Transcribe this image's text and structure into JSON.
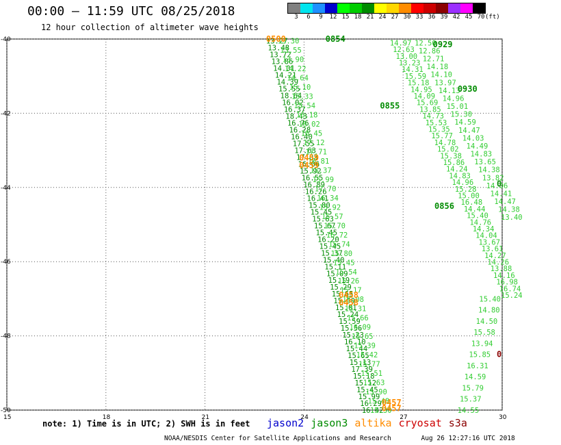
{
  "header": {
    "title": "00:00 – 11:59 UTC 08/25/2018",
    "subtitle": "12 hour collection of altimeter wave heights"
  },
  "colorbar": {
    "colors": [
      "#808080",
      "#00e5ee",
      "#1e90ff",
      "#0000cd",
      "#00ff00",
      "#00cd00",
      "#008b00",
      "#ffff00",
      "#ffd700",
      "#ff8c00",
      "#ff0000",
      "#cd0000",
      "#8b0000",
      "#9b30ff",
      "#ff00ff",
      "#000000"
    ],
    "labels": [
      "3",
      "6",
      "9",
      "12",
      "15",
      "18",
      "21",
      "24",
      "27",
      "30",
      "33",
      "36",
      "39",
      "42",
      "45",
      "70"
    ],
    "unit": "(ft)"
  },
  "axes": {
    "lat_labels": [
      "-40",
      "-42",
      "-44",
      "-46",
      "-48",
      "-50"
    ],
    "lat_values": [
      -40,
      -42,
      -44,
      -46,
      -48,
      -50
    ],
    "lon_labels": [
      "15",
      "18",
      "21",
      "24",
      "27",
      "30"
    ],
    "lon_values": [
      15,
      18,
      21,
      24,
      27,
      30
    ]
  },
  "colors": {
    "jason2": "#0000cd",
    "jason3": "#008b00",
    "jason3_light": "#32cd32",
    "altika": "#ff8c00",
    "cryosat": "#cd0000",
    "s3a": "#8b0000"
  },
  "tracks": {
    "jason3_main": {
      "lon_start": 22.85,
      "lat_start": -40.05,
      "lon_end": 25.75,
      "lat_end": -50.0,
      "values": [
        "13.27",
        "13.48",
        "13.72",
        "13.86",
        "14.01",
        "14.21",
        "14.39",
        "15.55",
        "18.64",
        "16.02",
        "16.37",
        "18.43",
        "16.76",
        "16.28",
        "16.40",
        "17.55",
        "17.63",
        "17.03",
        "16.06",
        "15.92",
        "16.55",
        "16.89",
        "16.26",
        "16.41",
        "15.80",
        "15.45",
        "15.63",
        "15.67",
        "15.45",
        "16.20",
        "15.45",
        "15.37",
        "15.40",
        "15.11",
        "15.09",
        "15.19",
        "15.29",
        "15.65",
        "15.50",
        "15.01",
        "15.24",
        "15.59",
        "15.56",
        "15.23",
        "16.10",
        "15.44",
        "15.65",
        "15.13",
        "17.39",
        "15.18",
        "15.12",
        "15.45",
        "15.99",
        "16.29",
        "16.42"
      ]
    },
    "jason3_second": {
      "lon_start": 23.2,
      "lat_start": -40.05,
      "lon_end": 26.0,
      "lat_end": -50.0,
      "values": [
        "13.30",
        "13.55",
        "13.90",
        "14.22",
        "14.64",
        "15.10",
        "15.33",
        "15.54",
        "16.18",
        "16.02",
        "16.45",
        "17.12",
        "17.71",
        "16.81",
        "15.37",
        "15.99",
        "17.70",
        "16.34",
        "15.92",
        "15.57",
        "15.70",
        "16.72",
        "15.74",
        "15.80",
        "15.45",
        "15.54",
        "15.26",
        "15.17",
        "15.08",
        "15.31",
        "15.66",
        "16.09",
        "15.65",
        "15.39",
        "15.42",
        "15.77",
        "15.51",
        "15.63",
        "15.90",
        "15.48",
        "15.30"
      ]
    },
    "jason3_third": {
      "lon_start": 26.6,
      "lat_start": -40.1,
      "lon_end": 30.0,
      "lat_end": -46.9,
      "values": [
        "14.97",
        "12.63",
        "13.00",
        "13.23",
        "14.31",
        "15.59",
        "15.18",
        "14.95",
        "14.09",
        "15.69",
        "13.85",
        "14.73",
        "15.53",
        "15.35",
        "15.77",
        "14.78",
        "15.02",
        "15.38",
        "15.86",
        "14.24",
        "14.83",
        "14.96",
        "15.28",
        "15.00",
        "16.48",
        "14.44",
        "15.40",
        "14.76",
        "14.34",
        "14.04",
        "13.67",
        "13.61",
        "14.27",
        "14.26",
        "13.88",
        "14.16",
        "16.98",
        "16.74",
        "15.24"
      ]
    },
    "jason3_fourth": {
      "lon_start": 27.35,
      "lat_start": -40.1,
      "lon_end": 30.0,
      "lat_end": -44.8,
      "values": [
        "12.50",
        "12.86",
        "12.71",
        "14.18",
        "14.10",
        "13.97",
        "14.13",
        "14.96",
        "15.01",
        "15.30",
        "14.59",
        "14.47",
        "14.03",
        "14.49",
        "14.83",
        "13.65",
        "14.38",
        "13.82",
        "14.06",
        "14.41",
        "14.47",
        "14.38",
        "13.40"
      ]
    },
    "jason3_fifth": {
      "lon_start": 30.0,
      "lat_start": -47.0,
      "lon_end": 29.3,
      "lat_end": -50.0,
      "values": [
        "15.40",
        "14.80",
        "14.50",
        "15.58",
        "13.94",
        "15.85",
        "16.31",
        "14.59",
        "15.79",
        "15.37",
        "14.55"
      ]
    }
  },
  "time_labels": [
    {
      "text": "0500",
      "lon": 22.85,
      "lat": -40.0,
      "sat": "altika"
    },
    {
      "text": "0854",
      "lon": 24.65,
      "lat": -40.0,
      "sat": "jason3"
    },
    {
      "text": "0929",
      "lon": 27.9,
      "lat": -40.15,
      "sat": "jason3"
    },
    {
      "text": "0930",
      "lon": 28.65,
      "lat": -41.35,
      "sat": "jason3"
    },
    {
      "text": "0855",
      "lon": 26.3,
      "lat": -41.8,
      "sat": "jason3"
    },
    {
      "text": "0459",
      "lon": 23.85,
      "lat": -43.2,
      "sat": "altika"
    },
    {
      "text": "0459",
      "lon": 23.85,
      "lat": -43.4,
      "sat": "altika"
    },
    {
      "text": "0856",
      "lon": 27.95,
      "lat": -44.5,
      "sat": "jason3"
    },
    {
      "text": "0458",
      "lon": 25.05,
      "lat": -46.9,
      "sat": "altika"
    },
    {
      "text": "0458",
      "lon": 25.05,
      "lat": -47.1,
      "sat": "altika"
    },
    {
      "text": "0457",
      "lon": 26.35,
      "lat": -49.8,
      "sat": "altika"
    },
    {
      "text": "0457",
      "lon": 26.35,
      "lat": -49.95,
      "sat": "altika"
    },
    {
      "text": "0",
      "lon": 29.98,
      "lat": -43.9,
      "sat": "jason3"
    },
    {
      "text": "0",
      "lon": 29.98,
      "lat": -48.5,
      "sat": "s3a"
    }
  ],
  "note": "note: 1) Time is in UTC; 2) SWH is in feet",
  "legend": [
    {
      "name": "jason2",
      "sat": "jason2"
    },
    {
      "name": "jason3",
      "sat": "jason3"
    },
    {
      "name": "altika",
      "sat": "altika"
    },
    {
      "name": "cryosat",
      "sat": "cryosat"
    },
    {
      "name": "s3a",
      "sat": "s3a"
    }
  ],
  "footer": {
    "credit": "NOAA/NESDIS Center for Satellite Applications and Research",
    "timestamp": "Aug 26 12:27:16 UTC 2018"
  }
}
